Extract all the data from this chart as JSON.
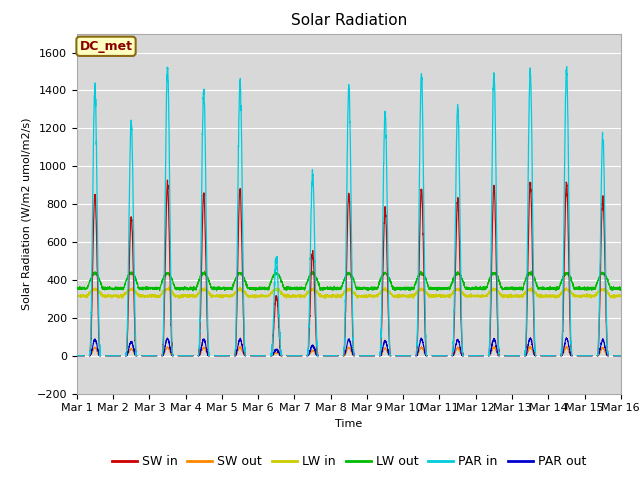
{
  "title": "Solar Radiation",
  "xlabel": "Time",
  "ylabel": "Solar Radiation (W/m2 umol/m2/s)",
  "ylim": [
    -200,
    1700
  ],
  "yticks": [
    -200,
    0,
    200,
    400,
    600,
    800,
    1000,
    1200,
    1400,
    1600
  ],
  "num_days": 15,
  "points_per_day": 288,
  "series_colors": {
    "SW in": "#cc0000",
    "SW out": "#ff8800",
    "LW in": "#cccc00",
    "LW out": "#00bb00",
    "PAR in": "#00ccdd",
    "PAR out": "#0000cc"
  },
  "annotation_text": "DC_met",
  "fig_bg_color": "#ffffff",
  "plot_bg_color": "#d8d8d8",
  "grid_color": "#ffffff",
  "title_fontsize": 11,
  "label_fontsize": 8,
  "tick_fontsize": 8,
  "legend_fontsize": 9
}
